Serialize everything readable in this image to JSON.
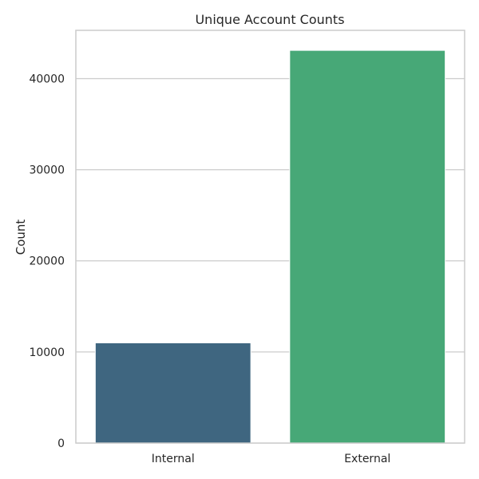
{
  "chart_data": {
    "type": "bar",
    "title": "Unique Account Counts",
    "xlabel": "",
    "ylabel": "Count",
    "categories": [
      "Internal",
      "External"
    ],
    "values": [
      11000,
      43100
    ],
    "colors": [
      "#3f6680",
      "#47a877"
    ],
    "ylim": [
      0,
      45300
    ],
    "yticks": [
      0,
      10000,
      20000,
      30000,
      40000
    ],
    "grid": true,
    "legend": "none"
  }
}
